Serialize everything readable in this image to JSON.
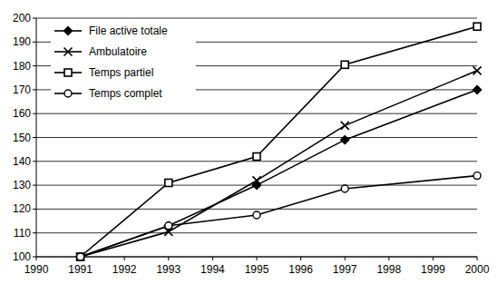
{
  "chart_data": {
    "type": "line",
    "x": [
      1991,
      1993,
      1995,
      1997,
      2000
    ],
    "series": [
      {
        "name": "File active totale",
        "color": "#000000",
        "marker": "diamond",
        "values": [
          100,
          113,
          130,
          149,
          170
        ]
      },
      {
        "name": "Ambulatoire",
        "color": "#000000",
        "marker": "x",
        "values": [
          100,
          110.5,
          132,
          155,
          178
        ]
      },
      {
        "name": "Temps partiel",
        "color": "#000000",
        "marker": "square",
        "values": [
          100,
          131,
          142,
          180.5,
          196.5
        ]
      },
      {
        "name": "Temps complet",
        "color": "#000000",
        "marker": "circle",
        "values": [
          100,
          113,
          117.5,
          128.5,
          134
        ]
      }
    ],
    "xlim": [
      1990,
      2000
    ],
    "xticks": [
      1990,
      1991,
      1992,
      1993,
      1994,
      1995,
      1996,
      1997,
      1998,
      1999,
      2000
    ],
    "ylim": [
      100,
      200
    ],
    "yticks": [
      100,
      110,
      120,
      130,
      140,
      150,
      160,
      170,
      180,
      190,
      200
    ],
    "grid": true,
    "legend": "upper left"
  }
}
